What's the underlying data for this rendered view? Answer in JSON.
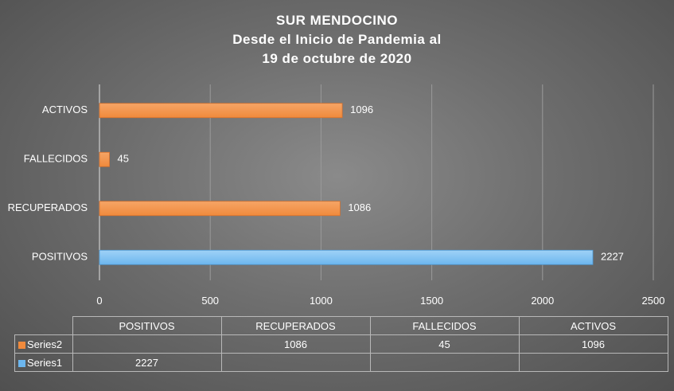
{
  "title": {
    "line1": "SUR MENDOCINO",
    "line2": "Desde el Inicio de Pandemia al",
    "line3": "19 de octubre de 2020"
  },
  "colors": {
    "series2": "#f08a3c",
    "series1": "#6cb6ee"
  },
  "chart_data": {
    "type": "bar",
    "orientation": "horizontal",
    "categories": [
      "POSITIVOS",
      "RECUPERADOS",
      "FALLECIDOS",
      "ACTIVOS"
    ],
    "series": [
      {
        "name": "Series1",
        "values": [
          2227,
          null,
          null,
          null
        ]
      },
      {
        "name": "Series2",
        "values": [
          null,
          1086,
          45,
          1096
        ]
      }
    ],
    "xlim": [
      0,
      2500
    ],
    "xticks": [
      0,
      500,
      1000,
      1500,
      2000,
      2500
    ],
    "grid": true,
    "legend": "data-table"
  },
  "table": {
    "headers": [
      "POSITIVOS",
      "RECUPERADOS",
      "FALLECIDOS",
      "ACTIVOS"
    ],
    "rows": [
      {
        "name": "Series2",
        "cells": [
          "",
          "1086",
          "45",
          "1096"
        ]
      },
      {
        "name": "Series1",
        "cells": [
          "2227",
          "",
          "",
          ""
        ]
      }
    ]
  }
}
